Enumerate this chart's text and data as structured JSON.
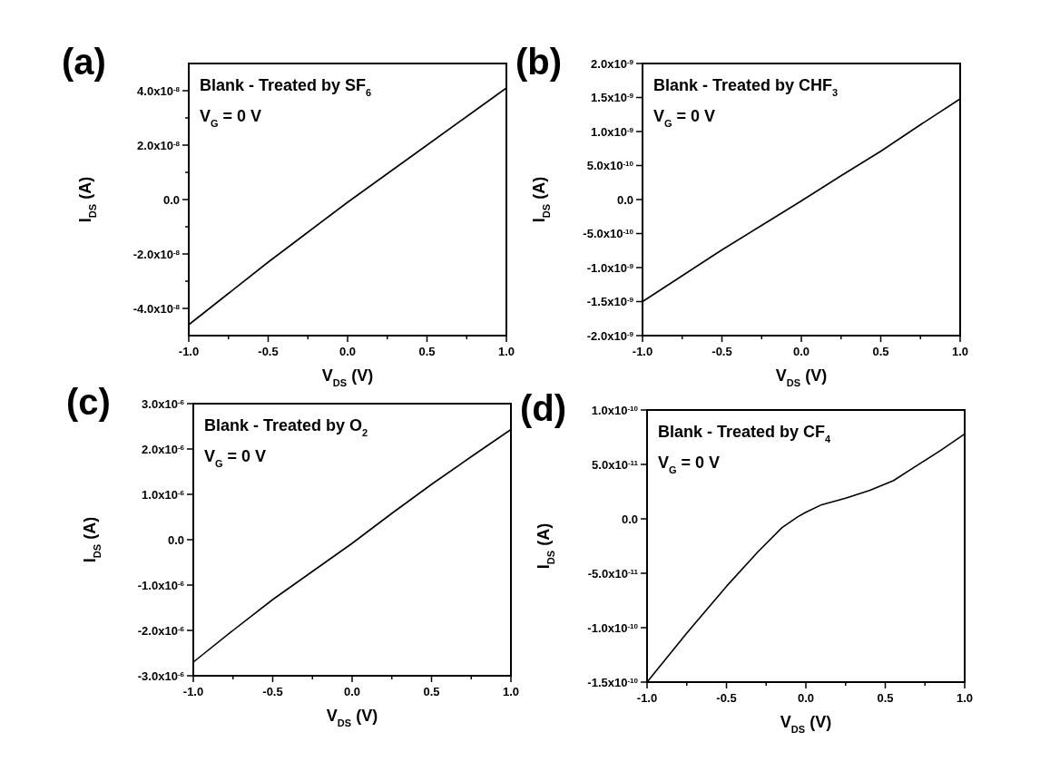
{
  "chart_data": [
    {
      "type": "line",
      "title": "(a)",
      "annotations": [
        "Blank - Treated by SF$_{6}$",
        "V$_{G}$ = 0 V"
      ],
      "xlabel": "V$_{DS}$ (V)",
      "ylabel": "I$_{DS}$ (A)",
      "x": [
        -1,
        -0.75,
        -0.5,
        -0.25,
        0,
        0.25,
        0.5,
        0.75,
        1
      ],
      "series": [
        {
          "color": "#000000",
          "values": [
            -4.6e-08,
            -3.45e-08,
            -2.3e-08,
            -1.2e-08,
            -1e-09,
            9.5e-09,
            2e-08,
            3.05e-08,
            4.1e-08
          ]
        }
      ],
      "xlim": [
        -1,
        1
      ],
      "xticks": [
        {
          "value": -1,
          "label": "-1.0"
        },
        {
          "value": -0.75,
          "label": null
        },
        {
          "value": -0.5,
          "label": "-0.5"
        },
        {
          "value": -0.25,
          "label": null
        },
        {
          "value": 0,
          "label": "0.0"
        },
        {
          "value": 0.25,
          "label": null
        },
        {
          "value": 0.5,
          "label": "0.5"
        },
        {
          "value": 0.75,
          "label": null
        },
        {
          "value": 1,
          "label": "1.0"
        }
      ],
      "ylim": [
        -5e-08,
        5e-08
      ],
      "yticks": [
        {
          "value": -4e-08,
          "label": "-4.0x10$^{-8}$"
        },
        {
          "value": -3e-08,
          "label": null
        },
        {
          "value": -2e-08,
          "label": "-2.0x10$^{-8}$"
        },
        {
          "value": -1e-08,
          "label": null
        },
        {
          "value": 0,
          "label": "0.0"
        },
        {
          "value": 1e-08,
          "label": null
        },
        {
          "value": 2e-08,
          "label": "2.0x10$^{-8}$"
        },
        {
          "value": 3e-08,
          "label": null
        },
        {
          "value": 4e-08,
          "label": "4.0x10$^{-8}$"
        }
      ]
    },
    {
      "type": "line",
      "title": "(b)",
      "annotations": [
        "Blank - Treated by CHF$_{3}$",
        "V$_{G}$ = 0 V"
      ],
      "xlabel": "V$_{DS}$ (V)",
      "ylabel": "I$_{DS}$ (A)",
      "x": [
        -1,
        -0.75,
        -0.5,
        -0.25,
        0,
        0.25,
        0.5,
        0.75,
        1
      ],
      "series": [
        {
          "color": "#000000",
          "values": [
            -1.5e-09,
            -1.12e-09,
            -7.4e-10,
            -3.8e-10,
            -2e-11,
            3.5e-10,
            7.1e-10,
            1.1e-09,
            1.48e-09
          ]
        }
      ],
      "xlim": [
        -1,
        1
      ],
      "xticks": [
        {
          "value": -1,
          "label": "-1.0"
        },
        {
          "value": -0.75,
          "label": null
        },
        {
          "value": -0.5,
          "label": "-0.5"
        },
        {
          "value": -0.25,
          "label": null
        },
        {
          "value": 0,
          "label": "0.0"
        },
        {
          "value": 0.25,
          "label": null
        },
        {
          "value": 0.5,
          "label": "0.5"
        },
        {
          "value": 0.75,
          "label": null
        },
        {
          "value": 1,
          "label": "1.0"
        }
      ],
      "ylim": [
        -2e-09,
        2e-09
      ],
      "yticks": [
        {
          "value": -2e-09,
          "label": "-2.0x10$^{-9}$"
        },
        {
          "value": -1.5e-09,
          "label": "-1.5x10$^{-9}$"
        },
        {
          "value": -1e-09,
          "label": "-1.0x10$^{-9}$"
        },
        {
          "value": -5e-10,
          "label": "-5.0x10$^{-10}$"
        },
        {
          "value": 0,
          "label": "0.0"
        },
        {
          "value": 5e-10,
          "label": "5.0x10$^{-10}$"
        },
        {
          "value": 1e-09,
          "label": "1.0x10$^{-9}$"
        },
        {
          "value": 1.5e-09,
          "label": "1.5x10$^{-9}$"
        },
        {
          "value": 2e-09,
          "label": "2.0x10$^{-9}$"
        }
      ]
    },
    {
      "type": "line",
      "title": "(c)",
      "annotations": [
        "Blank - Treated by O$_{2}$",
        "V$_{G}$ = 0 V"
      ],
      "xlabel": "V$_{DS}$ (V)",
      "ylabel": "I$_{DS}$ (A)",
      "x": [
        -1,
        -0.75,
        -0.5,
        -0.25,
        0,
        0.25,
        0.5,
        0.75,
        1
      ],
      "series": [
        {
          "color": "#000000",
          "values": [
            -2.7e-06,
            -2e-06,
            -1.32e-06,
            -7e-07,
            -8e-08,
            5.8e-07,
            1.22e-06,
            1.83e-06,
            2.43e-06
          ]
        }
      ],
      "xlim": [
        -1,
        1
      ],
      "xticks": [
        {
          "value": -1,
          "label": "-1.0"
        },
        {
          "value": -0.75,
          "label": null
        },
        {
          "value": -0.5,
          "label": "-0.5"
        },
        {
          "value": -0.25,
          "label": null
        },
        {
          "value": 0,
          "label": "0.0"
        },
        {
          "value": 0.25,
          "label": null
        },
        {
          "value": 0.5,
          "label": "0.5"
        },
        {
          "value": 0.75,
          "label": null
        },
        {
          "value": 1,
          "label": "1.0"
        }
      ],
      "ylim": [
        -3e-06,
        3e-06
      ],
      "yticks": [
        {
          "value": -3e-06,
          "label": "-3.0x10$^{-6}$"
        },
        {
          "value": -2e-06,
          "label": "-2.0x10$^{-6}$"
        },
        {
          "value": -1e-06,
          "label": "-1.0x10$^{-6}$"
        },
        {
          "value": 0,
          "label": "0.0"
        },
        {
          "value": 1e-06,
          "label": "1.0x10$^{-6}$"
        },
        {
          "value": 2e-06,
          "label": "2.0x10$^{-6}$"
        },
        {
          "value": 3e-06,
          "label": "3.0x10$^{-6}$"
        }
      ]
    },
    {
      "type": "line",
      "title": "(d)",
      "annotations": [
        "Blank - Treated by CF$_{4}$",
        "V$_{G}$ = 0 V"
      ],
      "xlabel": "V$_{DS}$ (V)",
      "ylabel": "I$_{DS}$ (A)",
      "x": [
        -1,
        -0.75,
        -0.5,
        -0.3,
        -0.15,
        -0.05,
        0,
        0.1,
        0.25,
        0.4,
        0.55,
        0.7,
        0.85,
        1
      ],
      "series": [
        {
          "color": "#000000",
          "values": [
            -1.5e-10,
            -1.05e-10,
            -6.2e-11,
            -3e-11,
            -8e-12,
            2e-12,
            6e-12,
            1.3e-11,
            1.9e-11,
            2.6e-11,
            3.5e-11,
            4.9e-11,
            6.3e-11,
            7.8e-11
          ]
        }
      ],
      "xlim": [
        -1,
        1
      ],
      "xticks": [
        {
          "value": -1,
          "label": "-1.0"
        },
        {
          "value": -0.75,
          "label": null
        },
        {
          "value": -0.5,
          "label": "-0.5"
        },
        {
          "value": -0.25,
          "label": null
        },
        {
          "value": 0,
          "label": "0.0"
        },
        {
          "value": 0.25,
          "label": null
        },
        {
          "value": 0.5,
          "label": "0.5"
        },
        {
          "value": 0.75,
          "label": null
        },
        {
          "value": 1,
          "label": "1.0"
        }
      ],
      "ylim": [
        -1.5e-10,
        1e-10
      ],
      "yticks": [
        {
          "value": -1.5e-10,
          "label": "-1.5x10$^{-10}$"
        },
        {
          "value": -1e-10,
          "label": "-1.0x10$^{-10}$"
        },
        {
          "value": -5e-11,
          "label": "-5.0x10$^{-11}$"
        },
        {
          "value": 0,
          "label": "0.0"
        },
        {
          "value": 5e-11,
          "label": "5.0x10$^{-11}$"
        },
        {
          "value": 1e-10,
          "label": "1.0x10$^{-10}$"
        }
      ]
    }
  ]
}
